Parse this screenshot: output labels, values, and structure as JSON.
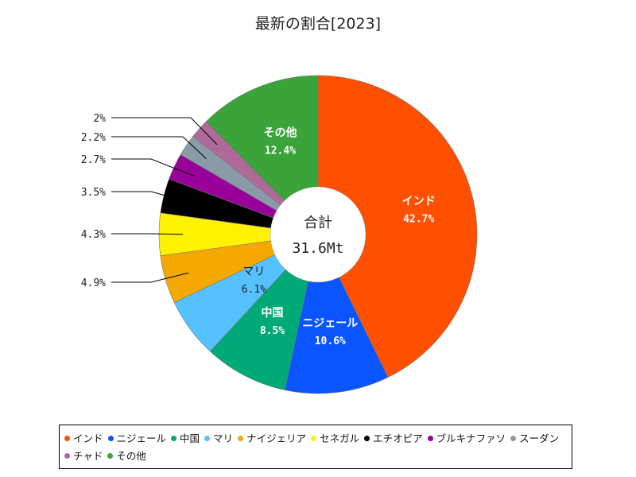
{
  "chart_data": {
    "type": "pie",
    "title": "最新の割合[2023]",
    "center_label": "合計",
    "center_value": "31.6Mt",
    "slices": [
      {
        "name": "インド",
        "value": 42.7,
        "label": "42.7%",
        "color": "#ff4f00",
        "label_text_color": "#ffffff",
        "label_weight": "bold",
        "inside": true,
        "show_name": true
      },
      {
        "name": "ニジェール",
        "value": 10.6,
        "label": "10.6%",
        "color": "#0a55ff",
        "label_text_color": "#ffffff",
        "label_weight": "bold",
        "inside": true,
        "show_name": true
      },
      {
        "name": "中国",
        "value": 8.5,
        "label": "8.5%",
        "color": "#00aa77",
        "label_text_color": "#ffffff",
        "label_weight": "bold",
        "inside": true,
        "show_name": true
      },
      {
        "name": "マリ",
        "value": 6.1,
        "label": "6.1%",
        "color": "#55c2ff",
        "label_text_color": "#222222",
        "label_weight": "normal",
        "inside": true,
        "show_name": true
      },
      {
        "name": "ナイジェリア",
        "value": 4.9,
        "label": "4.9%",
        "color": "#f5a800",
        "inside": false
      },
      {
        "name": "セネガル",
        "value": 4.3,
        "label": "4.3%",
        "color": "#fff200",
        "inside": false
      },
      {
        "name": "エチオピア",
        "value": 3.5,
        "label": "3.5%",
        "color": "#000000",
        "inside": false
      },
      {
        "name": "ブルキナファソ",
        "value": 2.7,
        "label": "2.7%",
        "color": "#990099",
        "inside": false
      },
      {
        "name": "スーダン",
        "value": 2.2,
        "label": "2.2%",
        "color": "#8a9aa8",
        "inside": false
      },
      {
        "name": "チャド",
        "value": 2.0,
        "label": "2%",
        "color": "#b06a9a",
        "inside": false
      },
      {
        "name": "その他",
        "value": 12.4,
        "label": "12.4%",
        "color": "#3aa33a",
        "label_text_color": "#ffffff",
        "label_weight": "bold",
        "inside": true,
        "show_name": true
      }
    ],
    "legend": {
      "position": "bottom"
    }
  }
}
